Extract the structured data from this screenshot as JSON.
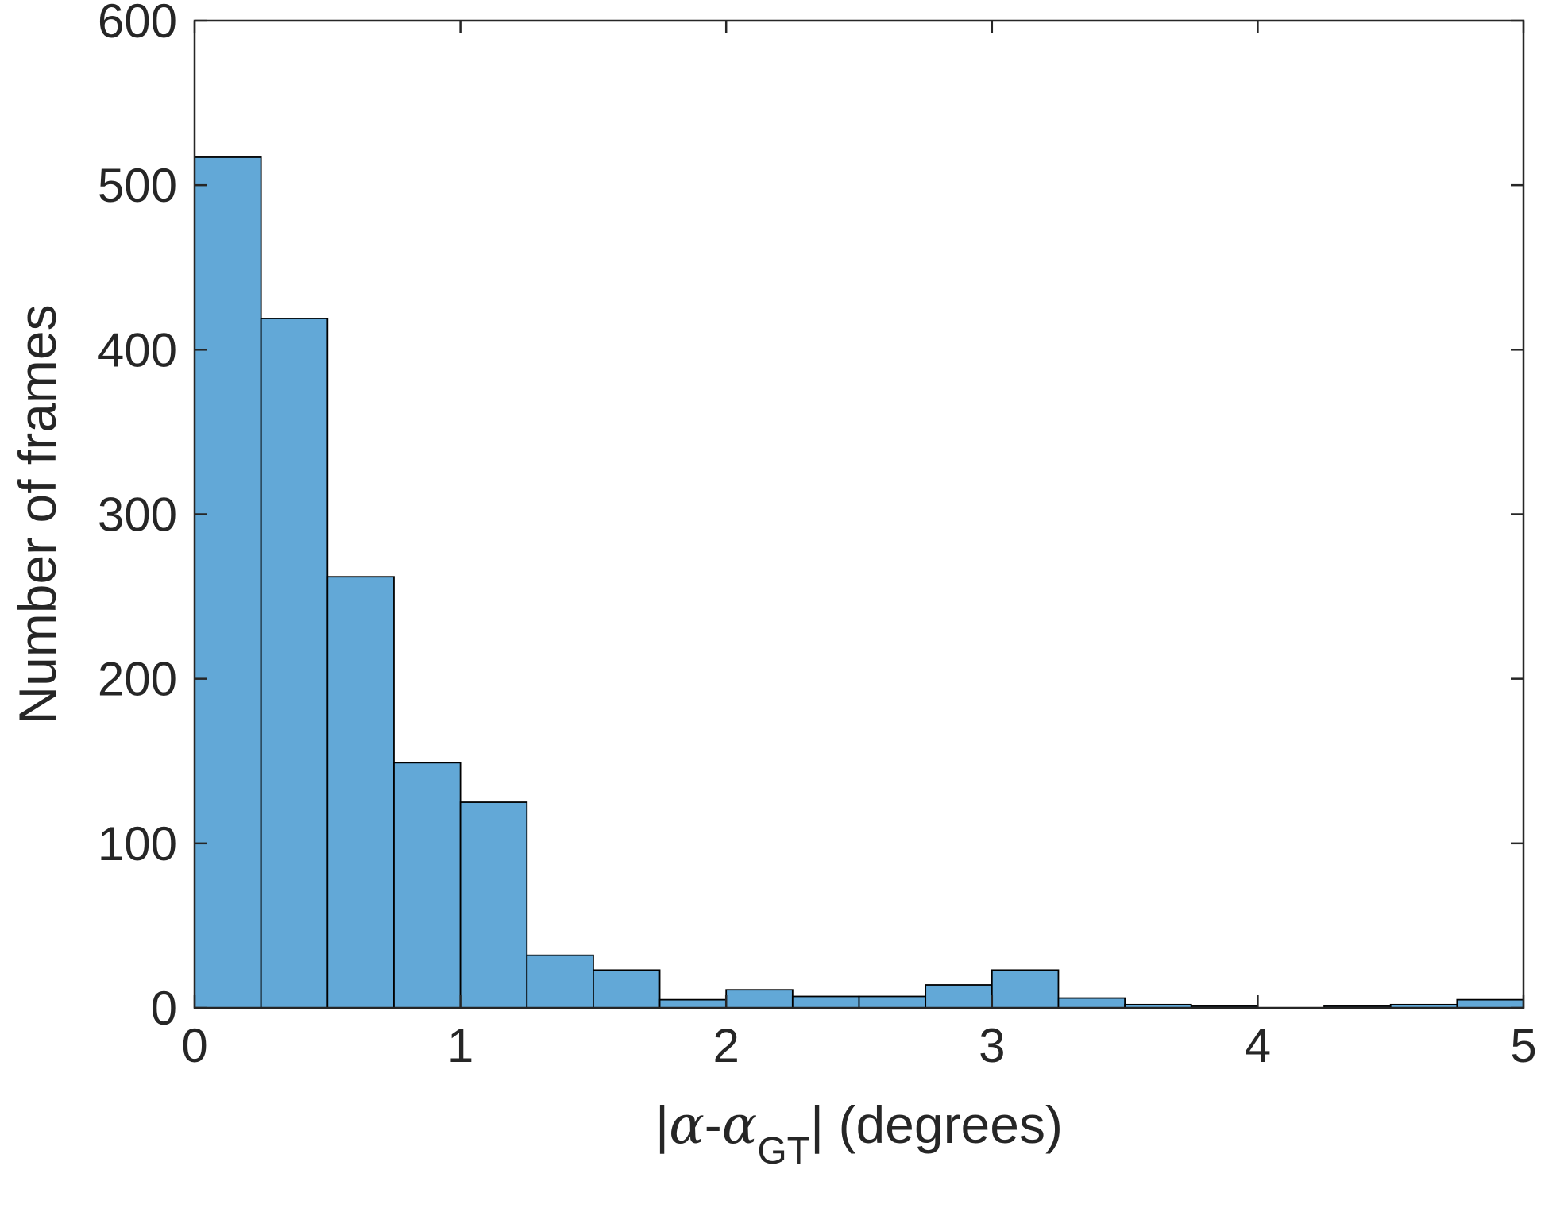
{
  "chart_data": {
    "type": "bar",
    "histogram": true,
    "bin_edges": [
      0,
      0.25,
      0.5,
      0.75,
      1.0,
      1.25,
      1.5,
      1.75,
      2.0,
      2.25,
      2.5,
      2.75,
      3.0,
      3.25,
      3.5,
      3.75,
      4.0,
      4.25,
      4.5,
      4.75,
      5.0
    ],
    "values": [
      517,
      419,
      262,
      149,
      125,
      32,
      23,
      5,
      11,
      7,
      7,
      14,
      23,
      6,
      2,
      1,
      0,
      1,
      2,
      5
    ],
    "xlim": [
      0,
      5
    ],
    "ylim": [
      0,
      600
    ],
    "xticks": [
      0,
      1,
      2,
      3,
      4,
      5
    ],
    "yticks": [
      0,
      100,
      200,
      300,
      400,
      500,
      600
    ],
    "xtick_labels": [
      "0",
      "1",
      "2",
      "3",
      "4",
      "5"
    ],
    "ytick_labels": [
      "0",
      "100",
      "200",
      "300",
      "400",
      "500",
      "600"
    ],
    "xlabel": {
      "bar_open": "|",
      "alpha": "α",
      "minus": "-",
      "alpha2": "α",
      "subscript": "GT",
      "bar_close": "|",
      "suffix": " (degrees)"
    },
    "ylabel": "Number of frames",
    "grid": false,
    "box": true,
    "colors": {
      "bar_fill": "#62A8D7",
      "bar_edge": "#000000",
      "axis": "#262626",
      "text": "#262626"
    }
  }
}
